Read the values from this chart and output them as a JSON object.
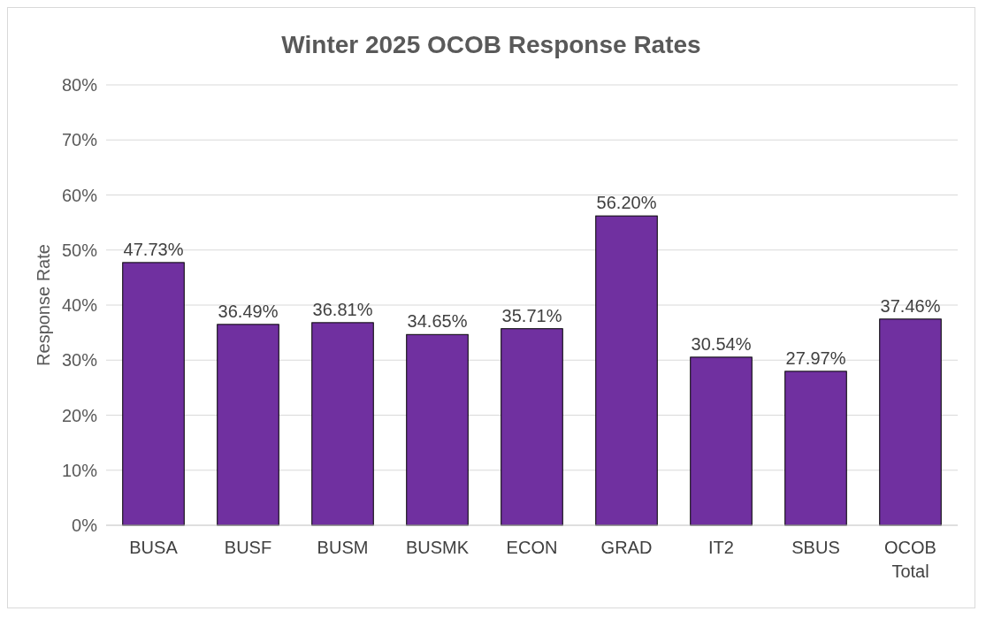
{
  "chart_data": {
    "type": "bar",
    "title": "Winter 2025 OCOB Response Rates",
    "ylabel": "Response Rate",
    "categories": [
      "BUSA",
      "BUSF",
      "BUSM",
      "BUSMK",
      "ECON",
      "GRAD",
      "IT2",
      "SBUS",
      "OCOB Total"
    ],
    "values": [
      47.73,
      36.49,
      36.81,
      34.65,
      35.71,
      56.2,
      30.54,
      27.97,
      37.46
    ],
    "value_labels": [
      "47.73%",
      "36.49%",
      "36.81%",
      "34.65%",
      "35.71%",
      "56.20%",
      "30.54%",
      "27.97%",
      "37.46%"
    ],
    "color": "#7030a0",
    "ylim": [
      0,
      80
    ],
    "yticks": [
      {
        "value": 0,
        "label": "0%"
      },
      {
        "value": 10,
        "label": "10%"
      },
      {
        "value": 20,
        "label": "20%"
      },
      {
        "value": 30,
        "label": "30%"
      },
      {
        "value": 40,
        "label": "40%"
      },
      {
        "value": 50,
        "label": "50%"
      },
      {
        "value": 60,
        "label": "60%"
      },
      {
        "value": 70,
        "label": "70%"
      },
      {
        "value": 80,
        "label": "80%"
      }
    ],
    "grid": "y"
  }
}
